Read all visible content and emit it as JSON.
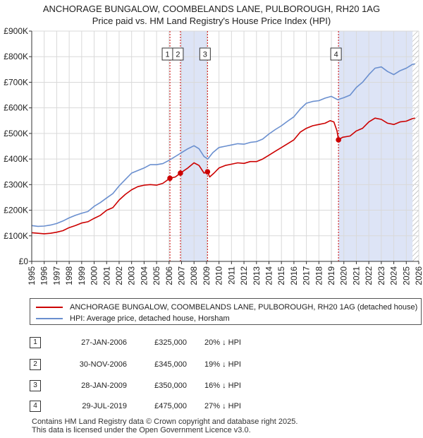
{
  "header": {
    "title_line1": "ANCHORAGE BUNGALOW, COOMBELANDS LANE, PULBOROUGH, RH20 1AG",
    "title_line2": "Price paid vs. HM Land Registry's House Price Index (HPI)"
  },
  "colors": {
    "property": "#cc0000",
    "hpi": "#6a8fcf",
    "shade": "#dde4f6",
    "grid": "#d9d9d9",
    "hatch": "#999999"
  },
  "chart_data": {
    "type": "line",
    "title": "Price paid vs. HM Land Registry's House Price Index (HPI)",
    "xlabel": "",
    "ylabel": "",
    "xlim": [
      1995,
      2026
    ],
    "ylim": [
      0,
      900000
    ],
    "grid": true,
    "legend_position": "below",
    "x_ticks": [
      "1995",
      "1996",
      "1997",
      "1998",
      "1999",
      "2000",
      "2001",
      "2002",
      "2003",
      "2004",
      "2005",
      "2006",
      "2007",
      "2008",
      "2009",
      "2010",
      "2011",
      "2012",
      "2013",
      "2014",
      "2015",
      "2016",
      "2017",
      "2018",
      "2019",
      "2020",
      "2021",
      "2022",
      "2023",
      "2024",
      "2025",
      "2026"
    ],
    "y_ticks": [
      {
        "value": 0,
        "label": "£0"
      },
      {
        "value": 100000,
        "label": "£100K"
      },
      {
        "value": 200000,
        "label": "£200K"
      },
      {
        "value": 300000,
        "label": "£300K"
      },
      {
        "value": 400000,
        "label": "£400K"
      },
      {
        "value": 500000,
        "label": "£500K"
      },
      {
        "value": 600000,
        "label": "£600K"
      },
      {
        "value": 700000,
        "label": "£700K"
      },
      {
        "value": 800000,
        "label": "£800K"
      },
      {
        "value": 900000,
        "label": "£900K"
      }
    ],
    "series": [
      {
        "name": "ANCHORAGE BUNGALOW, COOMBELANDS LANE, PULBOROUGH, RH20 1AG (detached house)",
        "color": "#cc0000",
        "points": [
          [
            1995.0,
            112000
          ],
          [
            1995.5,
            110000
          ],
          [
            1996.0,
            108000
          ],
          [
            1996.5,
            110000
          ],
          [
            1997.0,
            114000
          ],
          [
            1997.5,
            120000
          ],
          [
            1998.0,
            132000
          ],
          [
            1998.5,
            140000
          ],
          [
            1999.0,
            150000
          ],
          [
            1999.5,
            155000
          ],
          [
            2000.0,
            168000
          ],
          [
            2000.5,
            180000
          ],
          [
            2001.0,
            200000
          ],
          [
            2001.5,
            210000
          ],
          [
            2002.0,
            240000
          ],
          [
            2002.5,
            262000
          ],
          [
            2003.0,
            280000
          ],
          [
            2003.5,
            292000
          ],
          [
            2004.0,
            298000
          ],
          [
            2004.5,
            300000
          ],
          [
            2005.0,
            298000
          ],
          [
            2005.5,
            305000
          ],
          [
            2006.07,
            325000
          ],
          [
            2006.5,
            330000
          ],
          [
            2006.91,
            345000
          ],
          [
            2007.5,
            365000
          ],
          [
            2008.0,
            385000
          ],
          [
            2008.4,
            375000
          ],
          [
            2008.8,
            345000
          ],
          [
            2009.08,
            350000
          ],
          [
            2009.25,
            330000
          ],
          [
            2009.6,
            345000
          ],
          [
            2010.0,
            365000
          ],
          [
            2010.5,
            375000
          ],
          [
            2011.0,
            380000
          ],
          [
            2011.5,
            385000
          ],
          [
            2012.0,
            383000
          ],
          [
            2012.5,
            390000
          ],
          [
            2013.0,
            390000
          ],
          [
            2013.5,
            400000
          ],
          [
            2014.0,
            415000
          ],
          [
            2014.5,
            430000
          ],
          [
            2015.0,
            445000
          ],
          [
            2015.5,
            460000
          ],
          [
            2016.0,
            475000
          ],
          [
            2016.5,
            505000
          ],
          [
            2017.0,
            520000
          ],
          [
            2017.5,
            530000
          ],
          [
            2018.0,
            535000
          ],
          [
            2018.5,
            540000
          ],
          [
            2018.9,
            550000
          ],
          [
            2019.2,
            545000
          ],
          [
            2019.45,
            510000
          ],
          [
            2019.57,
            475000
          ],
          [
            2019.9,
            485000
          ],
          [
            2020.5,
            490000
          ],
          [
            2021.0,
            510000
          ],
          [
            2021.5,
            520000
          ],
          [
            2022.0,
            545000
          ],
          [
            2022.5,
            560000
          ],
          [
            2023.0,
            555000
          ],
          [
            2023.5,
            540000
          ],
          [
            2024.0,
            535000
          ],
          [
            2024.5,
            545000
          ],
          [
            2025.0,
            548000
          ],
          [
            2025.5,
            558000
          ],
          [
            2025.7,
            560000
          ]
        ]
      },
      {
        "name": "HPI: Average price, detached house, Horsham",
        "color": "#6a8fcf",
        "points": [
          [
            1995.0,
            140000
          ],
          [
            1995.5,
            137000
          ],
          [
            1996.0,
            138000
          ],
          [
            1996.5,
            142000
          ],
          [
            1997.0,
            148000
          ],
          [
            1997.5,
            158000
          ],
          [
            1998.0,
            170000
          ],
          [
            1998.5,
            180000
          ],
          [
            1999.0,
            188000
          ],
          [
            1999.5,
            195000
          ],
          [
            2000.0,
            215000
          ],
          [
            2000.5,
            230000
          ],
          [
            2001.0,
            248000
          ],
          [
            2001.5,
            265000
          ],
          [
            2002.0,
            295000
          ],
          [
            2002.5,
            320000
          ],
          [
            2003.0,
            345000
          ],
          [
            2003.5,
            355000
          ],
          [
            2004.0,
            365000
          ],
          [
            2004.5,
            378000
          ],
          [
            2005.0,
            378000
          ],
          [
            2005.5,
            382000
          ],
          [
            2006.0,
            395000
          ],
          [
            2006.5,
            410000
          ],
          [
            2007.0,
            425000
          ],
          [
            2007.5,
            440000
          ],
          [
            2008.0,
            452000
          ],
          [
            2008.4,
            440000
          ],
          [
            2008.8,
            410000
          ],
          [
            2009.1,
            400000
          ],
          [
            2009.5,
            425000
          ],
          [
            2010.0,
            445000
          ],
          [
            2010.5,
            450000
          ],
          [
            2011.0,
            455000
          ],
          [
            2011.5,
            460000
          ],
          [
            2012.0,
            458000
          ],
          [
            2012.5,
            465000
          ],
          [
            2013.0,
            468000
          ],
          [
            2013.5,
            478000
          ],
          [
            2014.0,
            498000
          ],
          [
            2014.5,
            515000
          ],
          [
            2015.0,
            530000
          ],
          [
            2015.5,
            548000
          ],
          [
            2016.0,
            565000
          ],
          [
            2016.5,
            595000
          ],
          [
            2017.0,
            618000
          ],
          [
            2017.5,
            625000
          ],
          [
            2018.0,
            628000
          ],
          [
            2018.5,
            638000
          ],
          [
            2019.0,
            645000
          ],
          [
            2019.5,
            632000
          ],
          [
            2020.0,
            640000
          ],
          [
            2020.5,
            650000
          ],
          [
            2021.0,
            680000
          ],
          [
            2021.5,
            700000
          ],
          [
            2022.0,
            730000
          ],
          [
            2022.5,
            755000
          ],
          [
            2023.0,
            760000
          ],
          [
            2023.5,
            742000
          ],
          [
            2024.0,
            730000
          ],
          [
            2024.5,
            745000
          ],
          [
            2025.0,
            755000
          ],
          [
            2025.5,
            770000
          ],
          [
            2025.7,
            772000
          ]
        ]
      }
    ],
    "sales": [
      {
        "id": "1",
        "date": "27-JAN-2006",
        "x": 2006.07,
        "price_value": 325000,
        "price": "£325,000",
        "hpi": "20% ↓ HPI"
      },
      {
        "id": "2",
        "date": "30-NOV-2006",
        "x": 2006.91,
        "price_value": 345000,
        "price": "£345,000",
        "hpi": "19% ↓ HPI"
      },
      {
        "id": "3",
        "date": "28-JAN-2009",
        "x": 2009.08,
        "price_value": 350000,
        "price": "£350,000",
        "hpi": "16% ↓ HPI"
      },
      {
        "id": "4",
        "date": "29-JUL-2019",
        "x": 2019.57,
        "price_value": 475000,
        "price": "£475,000",
        "hpi": "27% ↓ HPI"
      }
    ],
    "shaded_ranges": [
      [
        2006.91,
        2009.08
      ],
      [
        2019.57,
        2025.5
      ]
    ],
    "hatched_from": 2025.5
  },
  "legend": {
    "property_label": "ANCHORAGE BUNGALOW, COOMBELANDS LANE, PULBOROUGH, RH20 1AG (detached house)",
    "hpi_label": "HPI: Average price, detached house, Horsham"
  },
  "footer": {
    "line1": "Contains HM Land Registry data © Crown copyright and database right 2025.",
    "line2": "This data is licensed under the Open Government Licence v3.0."
  }
}
